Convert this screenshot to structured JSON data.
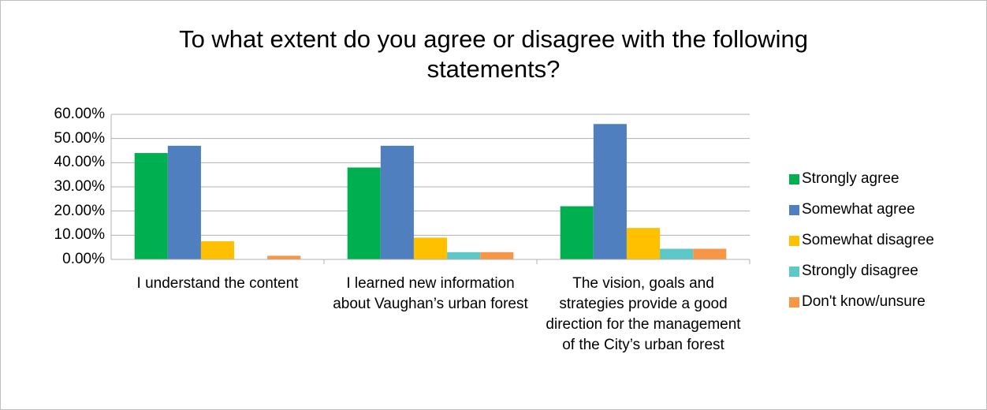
{
  "chart_data": {
    "type": "bar",
    "title": "To what extent do you agree or disagree with the following statements?",
    "categories": [
      "I understand the content",
      "I learned new information about Vaughan’s urban forest",
      "The vision, goals and strategies provide a good direction for the management of the City’s urban forest"
    ],
    "series": [
      {
        "name": "Strongly agree",
        "color": "#00b050",
        "values": [
          44,
          38,
          22
        ]
      },
      {
        "name": "Somewhat agree",
        "color": "#4f7fbf",
        "values": [
          47,
          47,
          56
        ]
      },
      {
        "name": "Somewhat disagree",
        "color": "#ffc000",
        "values": [
          7.5,
          9,
          13
        ]
      },
      {
        "name": "Strongly disagree",
        "color": "#5ec8c8",
        "values": [
          0,
          3,
          4.4
        ]
      },
      {
        "name": "Don't know/unsure",
        "color": "#f79646",
        "values": [
          1.5,
          3,
          4.4
        ]
      }
    ],
    "ylim": [
      0,
      60
    ],
    "yticks": [
      {
        "value": 0,
        "label": "0.00%"
      },
      {
        "value": 10,
        "label": "10.00%"
      },
      {
        "value": 20,
        "label": "20.00%"
      },
      {
        "value": 30,
        "label": "30.00%"
      },
      {
        "value": 40,
        "label": "40.00%"
      },
      {
        "value": 50,
        "label": "50.00%"
      },
      {
        "value": 60,
        "label": "60.00%"
      }
    ],
    "grid": true,
    "legend": "right"
  }
}
